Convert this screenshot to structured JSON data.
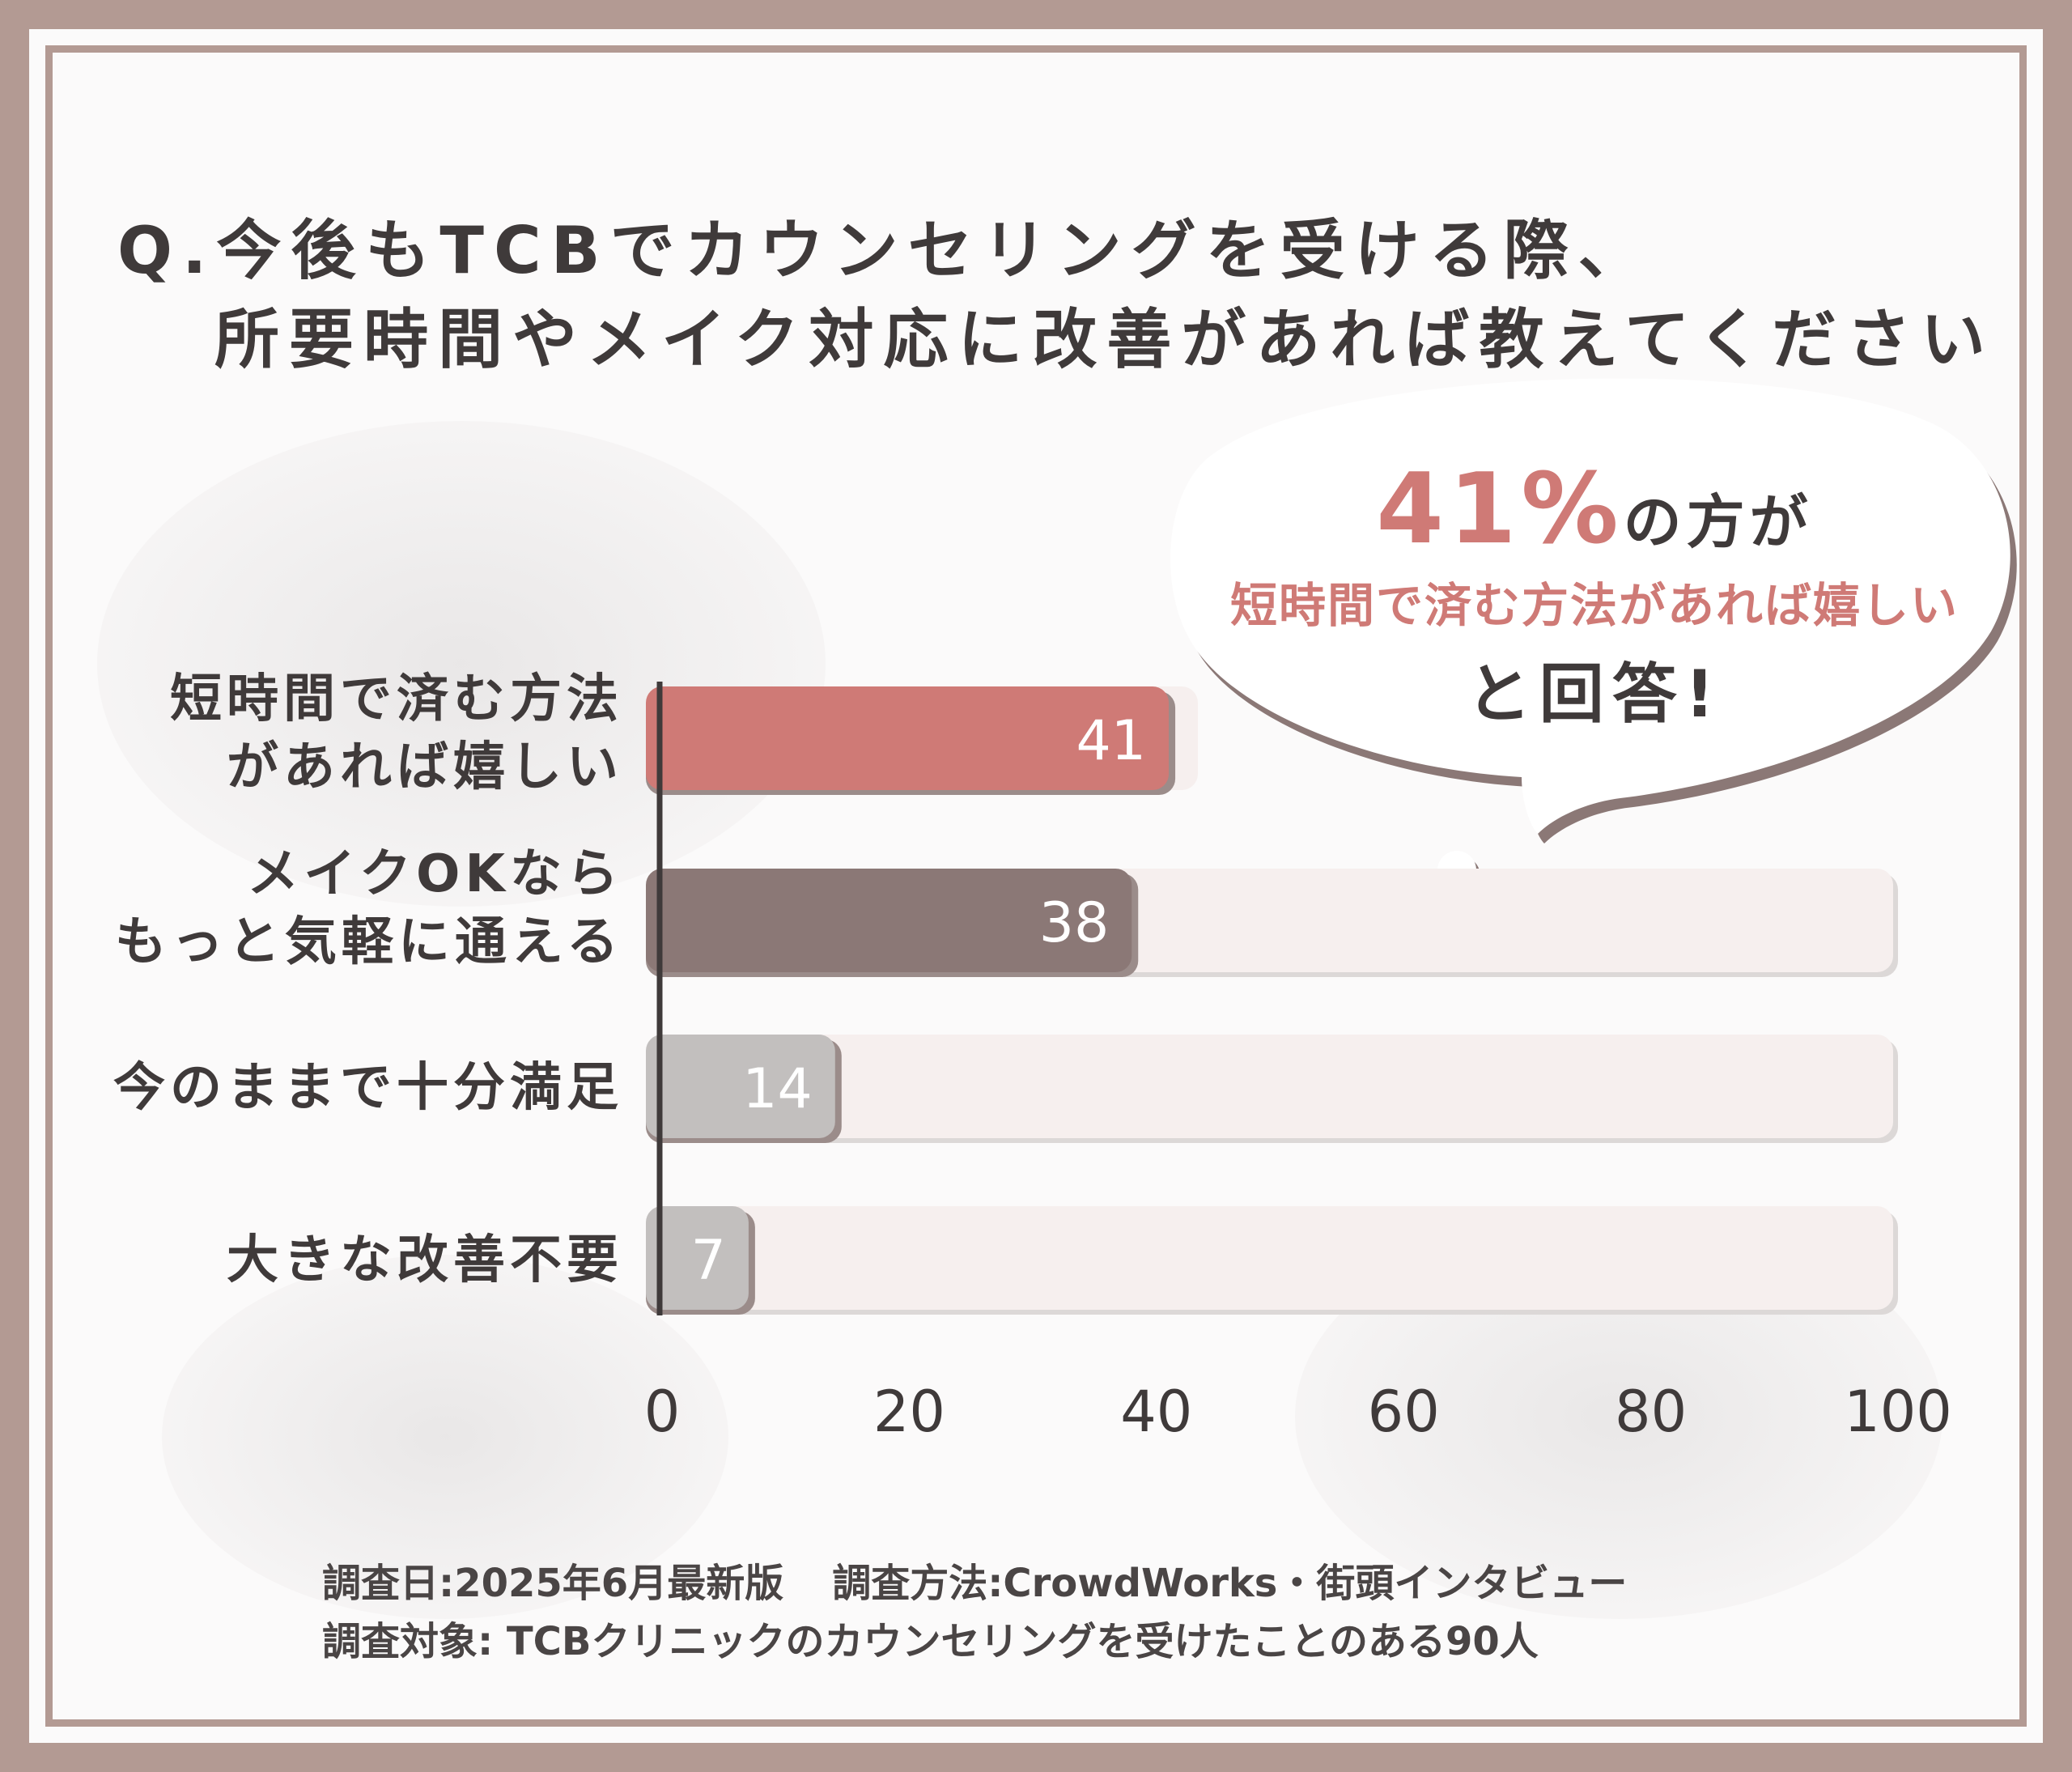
{
  "title": {
    "line1": "Q.今後もTCBでカウンセリングを受ける際、",
    "line2": "所要時間やメイク対応に改善があれば教えてください"
  },
  "callout": {
    "percent": "41%",
    "suffix": "の方が",
    "highlight": "短時間で済む方法があれば嬉しい",
    "closing": "と回答!"
  },
  "footer": {
    "date": "調査日:2025年6月最新版",
    "method": "調査方法:CrowdWorks・街頭インタビュー",
    "target": "調査対象: TCBクリニックのカウンセリングを受けたことのある90人"
  },
  "colors": {
    "frame": "#b39a93",
    "bar1": "#cf7a76",
    "bar2": "#8b7876",
    "bar_light": "#c2bfbe",
    "track": "#f6efee",
    "text": "#3f3a3a"
  },
  "chart_data": {
    "type": "bar",
    "orientation": "horizontal",
    "categories": [
      [
        "短時間で済む方法",
        "があれば嬉しい"
      ],
      [
        "メイクOKなら",
        "もっと気軽に通える"
      ],
      [
        "今のままで十分満足"
      ],
      [
        "大きな改善不要"
      ]
    ],
    "values": [
      41,
      38,
      14,
      7
    ],
    "value_labels": [
      "41",
      "38",
      "14",
      "7"
    ],
    "xlim": [
      0,
      100
    ],
    "xticks": [
      "0",
      "20",
      "40",
      "60",
      "80",
      "100"
    ],
    "grid": false,
    "legend": "none"
  }
}
